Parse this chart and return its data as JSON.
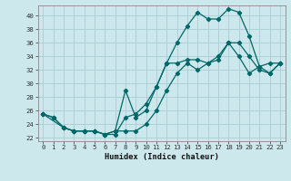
{
  "xlabel": "Humidex (Indice chaleur)",
  "background_color": "#cce8ec",
  "grid_color": "#b0d0d8",
  "line_color": "#006868",
  "xlim": [
    -0.5,
    23.5
  ],
  "ylim": [
    21.5,
    41.5
  ],
  "xticks": [
    0,
    1,
    2,
    3,
    4,
    5,
    6,
    7,
    8,
    9,
    10,
    11,
    12,
    13,
    14,
    15,
    16,
    17,
    18,
    19,
    20,
    21,
    22,
    23
  ],
  "yticks": [
    22,
    24,
    26,
    28,
    30,
    32,
    34,
    36,
    38,
    40
  ],
  "line1_x": [
    0,
    1,
    2,
    3,
    4,
    5,
    6,
    7,
    8,
    9,
    10,
    11,
    12,
    13,
    14,
    15,
    16,
    17,
    18,
    19,
    20,
    21,
    22,
    23
  ],
  "line1_y": [
    25.5,
    25.0,
    23.5,
    23.0,
    23.0,
    23.0,
    22.5,
    23.0,
    29.0,
    25.0,
    26.0,
    29.5,
    33.0,
    33.0,
    33.5,
    33.5,
    33.0,
    33.5,
    36.0,
    34.0,
    31.5,
    32.5,
    33.0,
    33.0
  ],
  "line2_x": [
    0,
    1,
    2,
    3,
    4,
    5,
    6,
    7,
    8,
    9,
    10,
    11,
    12,
    13,
    14,
    15,
    16,
    17,
    18,
    19,
    20,
    21,
    22,
    23
  ],
  "line2_y": [
    25.5,
    25.0,
    23.5,
    23.0,
    23.0,
    23.0,
    22.5,
    23.0,
    23.0,
    23.0,
    24.0,
    26.0,
    29.0,
    31.5,
    33.0,
    32.0,
    33.0,
    34.0,
    36.0,
    36.0,
    34.0,
    32.0,
    31.5,
    33.0
  ],
  "line3_x": [
    0,
    2,
    3,
    4,
    5,
    6,
    7,
    8,
    9,
    10,
    11,
    12,
    13,
    14,
    15,
    16,
    17,
    18,
    19,
    20,
    21,
    22,
    23
  ],
  "line3_y": [
    25.5,
    23.5,
    23.0,
    23.0,
    23.0,
    22.5,
    22.5,
    25.0,
    25.5,
    27.0,
    29.5,
    33.0,
    36.0,
    38.5,
    40.5,
    39.5,
    39.5,
    41.0,
    40.5,
    37.0,
    32.5,
    31.5,
    33.0
  ],
  "marker_size": 2.2,
  "linewidth": 0.9,
  "tick_fontsize": 5.2,
  "xlabel_fontsize": 6.2
}
